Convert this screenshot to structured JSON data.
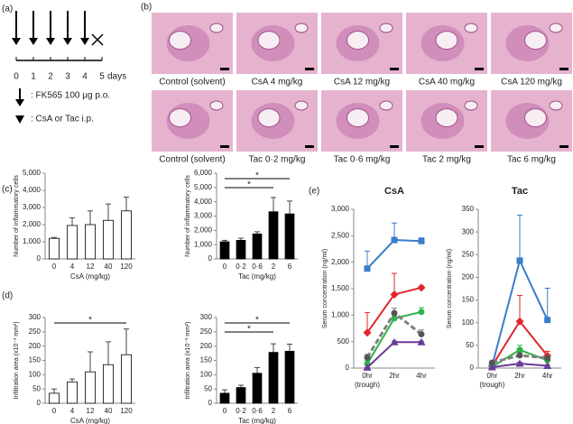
{
  "panel_labels": [
    "(a)",
    "(b)",
    "(c)",
    "(d)",
    "(e)"
  ],
  "timeline": {
    "ticks": [
      0,
      1,
      2,
      3,
      4,
      5
    ],
    "unit": "days",
    "legend": [
      ": FK565 100 μg p.o.",
      ": CsA or Tac i.p."
    ]
  },
  "images": {
    "labels": [
      "Control (solvent)",
      "CsA 4 mg/kg",
      "CsA 12 mg/kg",
      "CsA 40 mg/kg",
      "CsA 120 mg/kg",
      "Control (solvent)",
      "Tac 0·2 mg/kg",
      "Tac 0·6 mg/kg",
      "Tac 2 mg/kg",
      "Tac 6 mg/kg"
    ]
  },
  "chart_data": [
    {
      "type": "bar",
      "ylabel": "Number of inflammatory cells",
      "xlabel": "CsA (mg/kg)",
      "categories": [
        "0",
        "4",
        "12",
        "40",
        "120"
      ],
      "values": [
        1200,
        1950,
        2000,
        2250,
        2800
      ],
      "errors": [
        50,
        450,
        800,
        950,
        800
      ],
      "color": "#ffffff",
      "ylim": [
        0,
        5000
      ],
      "yticks": [
        0,
        {
          "value": 1000,
          "label": "1,000"
        },
        {
          "value": 2000,
          "label": "2,000"
        },
        {
          "value": 3000,
          "label": "3,000"
        },
        {
          "value": 4000,
          "label": "4,000"
        },
        {
          "value": 5000,
          "label": "5,000"
        }
      ]
    },
    {
      "type": "bar",
      "ylabel": "Number of inflammatory cells",
      "xlabel": "Tac (mg/kg)",
      "categories": [
        "0",
        "0·2",
        "0·6",
        "2",
        "6"
      ],
      "values": [
        1200,
        1300,
        1750,
        3300,
        3150
      ],
      "errors": [
        100,
        150,
        150,
        1000,
        900
      ],
      "color": "#000000",
      "ylim": [
        0,
        6000
      ],
      "yticks": [
        0,
        {
          "value": 1000,
          "label": "1,000"
        },
        {
          "value": 2000,
          "label": "2,000"
        },
        {
          "value": 3000,
          "label": "3,000"
        },
        {
          "value": 4000,
          "label": "4,000"
        },
        {
          "value": 5000,
          "label": "5,000"
        },
        {
          "value": 6000,
          "label": "6,000"
        }
      ],
      "annotations": [
        "*",
        "*"
      ]
    },
    {
      "type": "bar",
      "ylabel": "Infiltration area (x10⁻³ mm²)",
      "xlabel": "CsA (mg/kg)",
      "categories": [
        "0",
        "4",
        "12",
        "40",
        "120"
      ],
      "values": [
        35,
        75,
        110,
        135,
        170
      ],
      "errors": [
        15,
        10,
        70,
        80,
        90
      ],
      "color": "#ffffff",
      "ylim": [
        0,
        300
      ],
      "yticks": [
        0,
        50,
        100,
        150,
        200,
        250,
        300
      ],
      "annotations": [
        "*"
      ]
    },
    {
      "type": "bar",
      "ylabel": "Infiltration area (x10⁻³ mm²)",
      "xlabel": "Tac (mg/kg)",
      "categories": [
        "0",
        "0·2",
        "0·6",
        "2",
        "6"
      ],
      "values": [
        35,
        55,
        105,
        178,
        182
      ],
      "errors": [
        12,
        8,
        20,
        30,
        25
      ],
      "color": "#000000",
      "ylim": [
        0,
        300
      ],
      "yticks": [
        0,
        50,
        100,
        150,
        200,
        250,
        300
      ],
      "annotations": [
        "*",
        "*"
      ]
    },
    {
      "type": "line",
      "title": "CsA",
      "ylabel": "Serum concentration (ng/ml)",
      "categories": [
        "0hr",
        "2hr",
        "4hr"
      ],
      "x_note": "(trough)",
      "ylim": [
        0,
        3000
      ],
      "yticks": [
        0,
        500,
        {
          "value": 1000,
          "label": "1,000"
        },
        {
          "value": 1500,
          "label": "1,500"
        },
        {
          "value": 2000,
          "label": "2,000"
        },
        {
          "value": 2500,
          "label": "2,500"
        },
        {
          "value": 3000,
          "label": "3,000"
        }
      ],
      "series": [
        {
          "color": "#3a7dc9",
          "marker": "square",
          "values": [
            1880,
            2420,
            2400
          ],
          "errors": [
            330,
            320,
            60
          ]
        },
        {
          "color": "#e0262b",
          "marker": "diamond",
          "values": [
            670,
            1390,
            1520
          ],
          "errors": [
            380,
            400,
            30
          ]
        },
        {
          "color": "#2fb34a",
          "marker": "circle",
          "values": [
            80,
            940,
            1060
          ],
          "errors": [
            60,
            60,
            80
          ]
        },
        {
          "color": "#808080",
          "marker": "circle",
          "dash": true,
          "values": [
            200,
            1040,
            640
          ],
          "errors": [
            60,
            90,
            80
          ]
        },
        {
          "color": "#6a3a96",
          "marker": "triangle",
          "values": [
            10,
            490,
            490
          ],
          "errors": [
            5,
            20,
            20
          ]
        }
      ]
    },
    {
      "type": "line",
      "title": "Tac",
      "ylabel": "Serum concentration (ng/ml)",
      "categories": [
        "0hr",
        "2hr",
        "4hr"
      ],
      "x_note": "(trough)",
      "ylim": [
        0,
        350
      ],
      "yticks": [
        0,
        50,
        100,
        150,
        200,
        250,
        300,
        350
      ],
      "series": [
        {
          "color": "#3a7dc9",
          "marker": "square",
          "values": [
            5,
            237,
            106
          ],
          "errors": [
            3,
            100,
            70
          ]
        },
        {
          "color": "#e0262b",
          "marker": "diamond",
          "values": [
            5,
            103,
            27
          ],
          "errors": [
            3,
            57,
            10
          ]
        },
        {
          "color": "#2fb34a",
          "marker": "circle",
          "values": [
            3,
            40,
            17
          ],
          "errors": [
            2,
            10,
            6
          ]
        },
        {
          "color": "#808080",
          "marker": "circle",
          "dash": true,
          "values": [
            12,
            28,
            22
          ],
          "errors": [
            3,
            6,
            5
          ]
        },
        {
          "color": "#6a3a96",
          "marker": "triangle",
          "values": [
            2,
            10,
            5
          ],
          "errors": [
            1,
            3,
            2
          ]
        }
      ]
    }
  ]
}
